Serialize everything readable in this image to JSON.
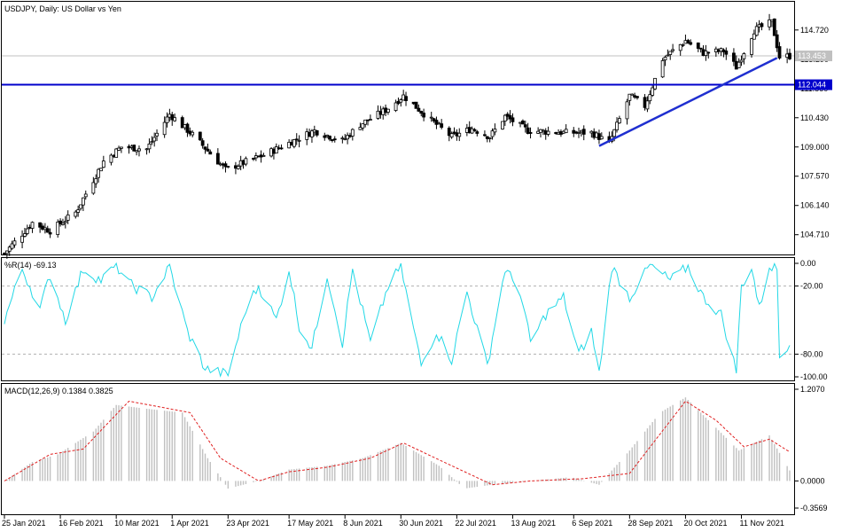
{
  "chart_data": [
    {
      "type": "candlestick",
      "title": "USDJPY, Daily:  US Dollar vs Yen",
      "y_ticks": [
        "114.720",
        "113.290",
        "111.860",
        "110.430",
        "109.000",
        "107.570",
        "106.140",
        "104.710"
      ],
      "ylim": [
        103.7,
        116.1
      ],
      "current_price": "113.453",
      "support_level": {
        "value": "112.044",
        "color": "#0000cc"
      },
      "trendline": {
        "color": "#1f2fd0",
        "from": {
          "date": "2021-09-16",
          "value": 109.05
        },
        "to": {
          "date": "2021-11-25",
          "value": 113.35
        }
      },
      "close_anchors": [
        {
          "date": "2021-01-25",
          "value": 103.8
        },
        {
          "date": "2021-02-05",
          "value": 105.3
        },
        {
          "date": "2021-02-12",
          "value": 104.9
        },
        {
          "date": "2021-02-22",
          "value": 105.8
        },
        {
          "date": "2021-03-05",
          "value": 108.3
        },
        {
          "date": "2021-03-12",
          "value": 109.0
        },
        {
          "date": "2021-03-22",
          "value": 108.9
        },
        {
          "date": "2021-03-31",
          "value": 110.6
        },
        {
          "date": "2021-04-09",
          "value": 109.6
        },
        {
          "date": "2021-04-22",
          "value": 107.9
        },
        {
          "date": "2021-05-07",
          "value": 108.6
        },
        {
          "date": "2021-05-17",
          "value": 109.2
        },
        {
          "date": "2021-05-27",
          "value": 109.8
        },
        {
          "date": "2021-06-07",
          "value": 109.3
        },
        {
          "date": "2021-06-14",
          "value": 110.1
        },
        {
          "date": "2021-06-24",
          "value": 110.8
        },
        {
          "date": "2021-07-01",
          "value": 111.5
        },
        {
          "date": "2021-07-12",
          "value": 110.3
        },
        {
          "date": "2021-07-20",
          "value": 109.5
        },
        {
          "date": "2021-07-28",
          "value": 109.9
        },
        {
          "date": "2021-08-04",
          "value": 109.5
        },
        {
          "date": "2021-08-10",
          "value": 110.5
        },
        {
          "date": "2021-08-19",
          "value": 109.8
        },
        {
          "date": "2021-09-03",
          "value": 109.7
        },
        {
          "date": "2021-09-13",
          "value": 109.7
        },
        {
          "date": "2021-09-20",
          "value": 109.2
        },
        {
          "date": "2021-09-28",
          "value": 111.5
        },
        {
          "date": "2021-10-04",
          "value": 111.0
        },
        {
          "date": "2021-10-11",
          "value": 113.3
        },
        {
          "date": "2021-10-20",
          "value": 114.2
        },
        {
          "date": "2021-10-27",
          "value": 113.6
        },
        {
          "date": "2021-11-04",
          "value": 113.7
        },
        {
          "date": "2021-11-09",
          "value": 112.9
        },
        {
          "date": "2021-11-16",
          "value": 114.7
        },
        {
          "date": "2021-11-23",
          "value": 115.1
        },
        {
          "date": "2021-11-26",
          "value": 113.4
        },
        {
          "date": "2021-11-30",
          "value": 113.45
        }
      ]
    },
    {
      "type": "line",
      "title": "%R(14) -69.13",
      "y_ticks": [
        "0.00",
        "-20.00",
        "-80.00",
        "-100.00"
      ],
      "ylim": [
        -100,
        0
      ],
      "levels": [
        -20,
        -80
      ],
      "color": "#22d8e6",
      "anchors": [
        {
          "date": "2021-01-25",
          "value": -50
        },
        {
          "date": "2021-02-01",
          "value": -5
        },
        {
          "date": "2021-02-08",
          "value": -40
        },
        {
          "date": "2021-02-12",
          "value": -10
        },
        {
          "date": "2021-02-18",
          "value": -50
        },
        {
          "date": "2021-02-25",
          "value": -5
        },
        {
          "date": "2021-03-04",
          "value": -15
        },
        {
          "date": "2021-03-10",
          "value": -2
        },
        {
          "date": "2021-03-15",
          "value": -18
        },
        {
          "date": "2021-03-24",
          "value": -30
        },
        {
          "date": "2021-03-31",
          "value": -3
        },
        {
          "date": "2021-04-07",
          "value": -60
        },
        {
          "date": "2021-04-14",
          "value": -93
        },
        {
          "date": "2021-04-23",
          "value": -98
        },
        {
          "date": "2021-04-30",
          "value": -40
        },
        {
          "date": "2021-05-05",
          "value": -20
        },
        {
          "date": "2021-05-12",
          "value": -50
        },
        {
          "date": "2021-05-17",
          "value": -5
        },
        {
          "date": "2021-05-21",
          "value": -55
        },
        {
          "date": "2021-05-26",
          "value": -75
        },
        {
          "date": "2021-06-01",
          "value": -10
        },
        {
          "date": "2021-06-07",
          "value": -70
        },
        {
          "date": "2021-06-11",
          "value": -5
        },
        {
          "date": "2021-06-18",
          "value": -70
        },
        {
          "date": "2021-06-25",
          "value": -20
        },
        {
          "date": "2021-06-30",
          "value": -3
        },
        {
          "date": "2021-07-08",
          "value": -90
        },
        {
          "date": "2021-07-14",
          "value": -60
        },
        {
          "date": "2021-07-20",
          "value": -85
        },
        {
          "date": "2021-07-26",
          "value": -25
        },
        {
          "date": "2021-08-03",
          "value": -90
        },
        {
          "date": "2021-08-10",
          "value": -5
        },
        {
          "date": "2021-08-16",
          "value": -25
        },
        {
          "date": "2021-08-20",
          "value": -70
        },
        {
          "date": "2021-08-26",
          "value": -45
        },
        {
          "date": "2021-09-02",
          "value": -30
        },
        {
          "date": "2021-09-08",
          "value": -80
        },
        {
          "date": "2021-09-13",
          "value": -60
        },
        {
          "date": "2021-09-16",
          "value": -97
        },
        {
          "date": "2021-09-21",
          "value": -3
        },
        {
          "date": "2021-09-28",
          "value": -30
        },
        {
          "date": "2021-10-06",
          "value": -2
        },
        {
          "date": "2021-10-14",
          "value": -15
        },
        {
          "date": "2021-10-21",
          "value": -3
        },
        {
          "date": "2021-10-27",
          "value": -30
        },
        {
          "date": "2021-11-03",
          "value": -45
        },
        {
          "date": "2021-11-09",
          "value": -95
        },
        {
          "date": "2021-11-11",
          "value": -20
        },
        {
          "date": "2021-11-15",
          "value": -3
        },
        {
          "date": "2021-11-18",
          "value": -40
        },
        {
          "date": "2021-11-22",
          "value": -2
        },
        {
          "date": "2021-11-25",
          "value": -5
        },
        {
          "date": "2021-11-26",
          "value": -82
        },
        {
          "date": "2021-11-30",
          "value": -69.13
        }
      ]
    },
    {
      "type": "bar+line",
      "title": "MACD(12,26,9) 0.1384 0.3825",
      "y_ticks": [
        "1.2070",
        "0.0000",
        "-0.3569"
      ],
      "ylim": [
        -0.3569,
        1.207
      ],
      "histogram_color": "#c0c0c0",
      "signal_color": "#e02020",
      "macd_anchors": [
        {
          "date": "2021-01-25",
          "value": 0.0
        },
        {
          "date": "2021-02-05",
          "value": 0.25
        },
        {
          "date": "2021-02-15",
          "value": 0.35
        },
        {
          "date": "2021-03-01",
          "value": 0.65
        },
        {
          "date": "2021-03-10",
          "value": 1.0
        },
        {
          "date": "2021-03-22",
          "value": 0.95
        },
        {
          "date": "2021-04-05",
          "value": 0.9
        },
        {
          "date": "2021-04-15",
          "value": 0.3
        },
        {
          "date": "2021-04-23",
          "value": -0.1
        },
        {
          "date": "2021-05-05",
          "value": 0.0
        },
        {
          "date": "2021-05-17",
          "value": 0.15
        },
        {
          "date": "2021-06-01",
          "value": 0.2
        },
        {
          "date": "2021-06-15",
          "value": 0.3
        },
        {
          "date": "2021-06-30",
          "value": 0.5
        },
        {
          "date": "2021-07-15",
          "value": 0.2
        },
        {
          "date": "2021-07-25",
          "value": -0.1
        },
        {
          "date": "2021-08-05",
          "value": -0.05
        },
        {
          "date": "2021-08-20",
          "value": 0.0
        },
        {
          "date": "2021-09-05",
          "value": 0.05
        },
        {
          "date": "2021-09-16",
          "value": -0.05
        },
        {
          "date": "2021-09-28",
          "value": 0.4
        },
        {
          "date": "2021-10-10",
          "value": 0.9
        },
        {
          "date": "2021-10-20",
          "value": 1.1
        },
        {
          "date": "2021-11-01",
          "value": 0.7
        },
        {
          "date": "2021-11-10",
          "value": 0.4
        },
        {
          "date": "2021-11-22",
          "value": 0.6
        },
        {
          "date": "2021-11-30",
          "value": 0.1384
        }
      ],
      "signal_anchors": [
        {
          "date": "2021-01-25",
          "value": 0.0
        },
        {
          "date": "2021-02-12",
          "value": 0.35
        },
        {
          "date": "2021-02-25",
          "value": 0.42
        },
        {
          "date": "2021-03-15",
          "value": 1.05
        },
        {
          "date": "2021-03-31",
          "value": 0.95
        },
        {
          "date": "2021-04-08",
          "value": 0.9
        },
        {
          "date": "2021-04-20",
          "value": 0.3
        },
        {
          "date": "2021-05-05",
          "value": 0.0
        },
        {
          "date": "2021-05-17",
          "value": 0.12
        },
        {
          "date": "2021-06-01",
          "value": 0.18
        },
        {
          "date": "2021-06-18",
          "value": 0.3
        },
        {
          "date": "2021-07-01",
          "value": 0.5
        },
        {
          "date": "2021-07-20",
          "value": 0.2
        },
        {
          "date": "2021-08-05",
          "value": -0.05
        },
        {
          "date": "2021-08-20",
          "value": 0.0
        },
        {
          "date": "2021-09-10",
          "value": 0.03
        },
        {
          "date": "2021-09-28",
          "value": 0.1
        },
        {
          "date": "2021-10-20",
          "value": 1.05
        },
        {
          "date": "2021-11-01",
          "value": 0.8
        },
        {
          "date": "2021-11-12",
          "value": 0.45
        },
        {
          "date": "2021-11-22",
          "value": 0.55
        },
        {
          "date": "2021-11-30",
          "value": 0.3825
        }
      ]
    }
  ],
  "x_axis": {
    "start_date": "2021-01-25",
    "end_date": "2021-11-30",
    "tick_labels": [
      {
        "date": "2021-01-25",
        "label": "25 Jan 2021"
      },
      {
        "date": "2021-02-16",
        "label": "16 Feb 2021"
      },
      {
        "date": "2021-03-10",
        "label": "10 Mar 2021"
      },
      {
        "date": "2021-04-01",
        "label": "1 Apr 2021"
      },
      {
        "date": "2021-04-23",
        "label": "23 Apr 2021"
      },
      {
        "date": "2021-05-17",
        "label": "17 May 2021"
      },
      {
        "date": "2021-06-08",
        "label": "8 Jun 2021"
      },
      {
        "date": "2021-06-30",
        "label": "30 Jun 2021"
      },
      {
        "date": "2021-07-22",
        "label": "22 Jul 2021"
      },
      {
        "date": "2021-08-13",
        "label": "13 Aug 2021"
      },
      {
        "date": "2021-09-06",
        "label": "6 Sep 2021"
      },
      {
        "date": "2021-09-28",
        "label": "28 Sep 2021"
      },
      {
        "date": "2021-10-20",
        "label": "20 Oct 2021"
      },
      {
        "date": "2021-11-11",
        "label": "11 Nov 2021"
      }
    ]
  }
}
